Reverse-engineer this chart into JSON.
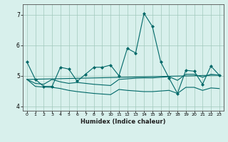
{
  "title": "",
  "xlabel": "Humidex (Indice chaleur)",
  "ylabel": "",
  "xlim": [
    -0.5,
    23.5
  ],
  "ylim": [
    3.85,
    7.35
  ],
  "bg_color": "#d8f0ec",
  "grid_color": "#a0c8bc",
  "line_color": "#006868",
  "xticks": [
    0,
    1,
    2,
    3,
    4,
    5,
    6,
    7,
    8,
    9,
    10,
    11,
    12,
    13,
    14,
    15,
    16,
    17,
    18,
    19,
    20,
    21,
    22,
    23
  ],
  "yticks": [
    4,
    5,
    6,
    7
  ],
  "series": [
    {
      "x": [
        0,
        1,
        2,
        3,
        4,
        5,
        6,
        7,
        8,
        9,
        10,
        11,
        12,
        13,
        14,
        15,
        16,
        17,
        18,
        19,
        20,
        21,
        22,
        23
      ],
      "y": [
        5.45,
        4.88,
        4.65,
        4.65,
        5.28,
        5.22,
        4.82,
        5.05,
        5.28,
        5.28,
        5.35,
        5.0,
        5.9,
        5.75,
        7.05,
        6.62,
        5.45,
        4.92,
        4.42,
        5.18,
        5.15,
        4.72,
        5.32,
        5.02
      ],
      "marker": "D",
      "markersize": 2.0,
      "linewidth": 0.8
    },
    {
      "x": [
        0,
        1,
        2,
        3,
        4,
        5,
        6,
        7,
        8,
        9,
        10,
        11,
        12,
        13,
        14,
        15,
        16,
        17,
        18,
        19,
        20,
        21,
        22,
        23
      ],
      "y": [
        4.88,
        4.75,
        4.72,
        4.88,
        4.8,
        4.75,
        4.78,
        4.75,
        4.72,
        4.7,
        4.68,
        4.88,
        4.9,
        4.92,
        4.93,
        4.93,
        4.95,
        4.97,
        4.85,
        5.05,
        5.05,
        4.95,
        5.05,
        5.02
      ],
      "marker": null,
      "markersize": 0,
      "linewidth": 0.8
    },
    {
      "x": [
        0,
        1,
        2,
        3,
        4,
        5,
        6,
        7,
        8,
        9,
        10,
        11,
        12,
        13,
        14,
        15,
        16,
        17,
        18,
        19,
        20,
        21,
        22,
        23
      ],
      "y": [
        4.88,
        4.65,
        4.63,
        4.62,
        4.58,
        4.52,
        4.48,
        4.45,
        4.42,
        4.4,
        4.38,
        4.55,
        4.52,
        4.5,
        4.48,
        4.48,
        4.5,
        4.52,
        4.42,
        4.62,
        4.62,
        4.52,
        4.6,
        4.58
      ],
      "marker": null,
      "markersize": 0,
      "linewidth": 0.8
    },
    {
      "x": [
        0,
        23
      ],
      "y": [
        4.88,
        5.02
      ],
      "marker": null,
      "markersize": 0,
      "linewidth": 0.8
    }
  ]
}
